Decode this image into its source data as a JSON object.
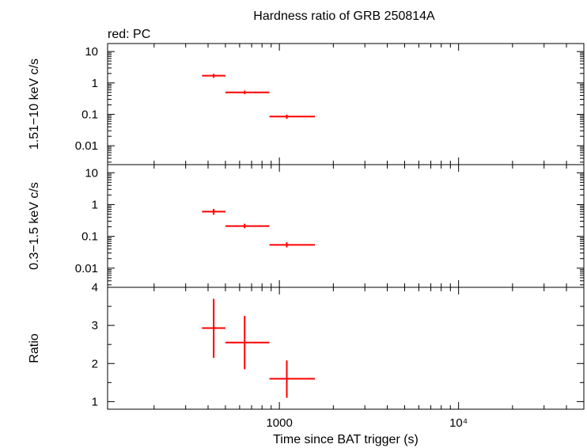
{
  "chart_data": {
    "type": "scatter",
    "title": "Hardness ratio of GRB 250814A",
    "legend_note": "red: PC",
    "xlabel": "Time since BAT trigger (s)",
    "x_scale": "log",
    "xlim": [
      110,
      50000
    ],
    "x_tick_labels": [
      {
        "value": 1000,
        "label": "1000"
      },
      {
        "value": 10000,
        "label": "10⁴"
      }
    ],
    "series_color": "#ff0000",
    "panels": [
      {
        "id": "hard",
        "ylabel": "1.51−10 keV c/s",
        "y_scale": "log",
        "ylim": [
          0.0025,
          18
        ],
        "y_ticks": [
          {
            "value": 10,
            "label": "10"
          },
          {
            "value": 1,
            "label": "1"
          },
          {
            "value": 0.1,
            "label": "0.1"
          },
          {
            "value": 0.01,
            "label": "0.01"
          }
        ],
        "points": [
          {
            "x": 430,
            "xlo": 370,
            "xhi": 500,
            "y": 1.7,
            "ylo": 1.45,
            "yhi": 1.95
          },
          {
            "x": 640,
            "xlo": 500,
            "xhi": 880,
            "y": 0.5,
            "ylo": 0.44,
            "yhi": 0.57
          },
          {
            "x": 1100,
            "xlo": 880,
            "xhi": 1580,
            "y": 0.085,
            "ylo": 0.072,
            "yhi": 0.098
          }
        ]
      },
      {
        "id": "soft",
        "ylabel": "0.3−1.5 keV c/s",
        "y_scale": "log",
        "ylim": [
          0.0025,
          18
        ],
        "y_ticks": [
          {
            "value": 10,
            "label": "10"
          },
          {
            "value": 1,
            "label": "1"
          },
          {
            "value": 0.1,
            "label": "0.1"
          },
          {
            "value": 0.01,
            "label": "0.01"
          }
        ],
        "points": [
          {
            "x": 430,
            "xlo": 370,
            "xhi": 500,
            "y": 0.6,
            "ylo": 0.48,
            "yhi": 0.73
          },
          {
            "x": 640,
            "xlo": 500,
            "xhi": 880,
            "y": 0.21,
            "ylo": 0.18,
            "yhi": 0.25
          },
          {
            "x": 1100,
            "xlo": 880,
            "xhi": 1580,
            "y": 0.054,
            "ylo": 0.045,
            "yhi": 0.065
          }
        ]
      },
      {
        "id": "ratio",
        "ylabel": "Ratio",
        "y_scale": "linear",
        "ylim": [
          0.8,
          4
        ],
        "y_ticks": [
          {
            "value": 4,
            "label": "4"
          },
          {
            "value": 3,
            "label": "3"
          },
          {
            "value": 2,
            "label": "2"
          },
          {
            "value": 1,
            "label": "1"
          }
        ],
        "points": [
          {
            "x": 430,
            "xlo": 370,
            "xhi": 500,
            "y": 2.93,
            "ylo": 2.15,
            "yhi": 3.7
          },
          {
            "x": 640,
            "xlo": 500,
            "xhi": 880,
            "y": 2.55,
            "ylo": 1.85,
            "yhi": 3.25
          },
          {
            "x": 1100,
            "xlo": 880,
            "xhi": 1580,
            "y": 1.6,
            "ylo": 1.1,
            "yhi": 2.08
          }
        ]
      }
    ]
  }
}
